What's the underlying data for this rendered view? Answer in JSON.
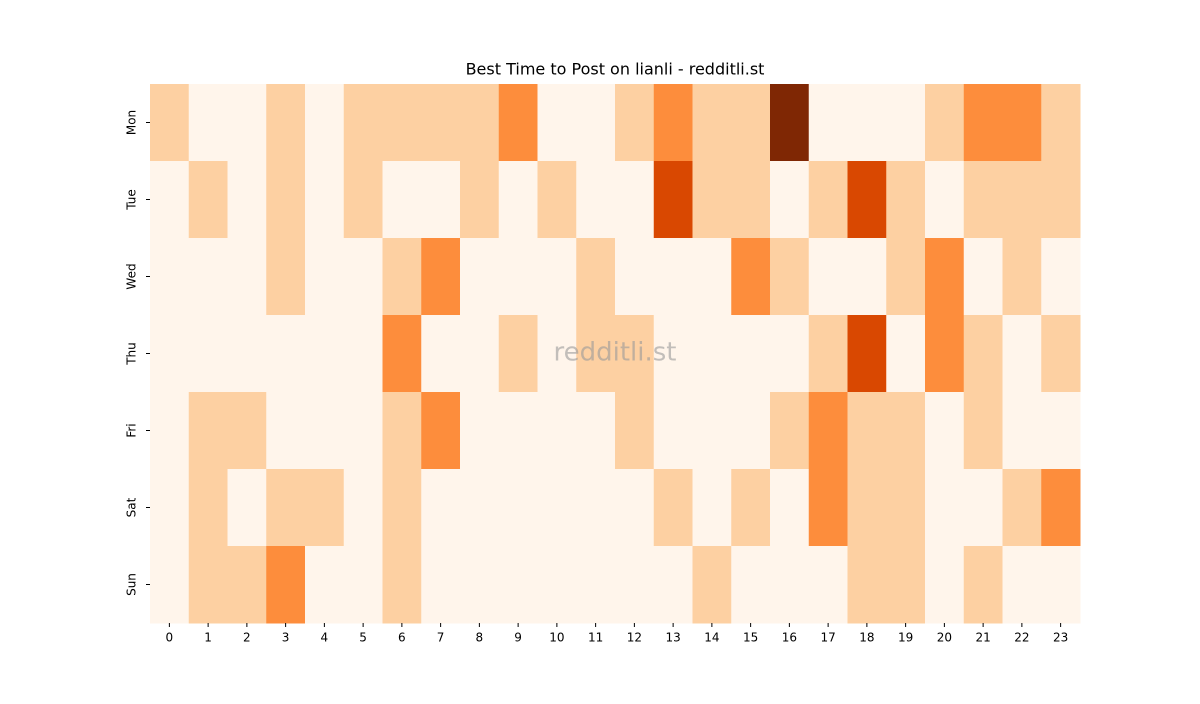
{
  "chart_data": {
    "type": "heatmap",
    "title": "Best Time to Post on lianli - redditli.st",
    "watermark": "redditli.st",
    "x_categories": [
      0,
      1,
      2,
      3,
      4,
      5,
      6,
      7,
      8,
      9,
      10,
      11,
      12,
      13,
      14,
      15,
      16,
      17,
      18,
      19,
      20,
      21,
      22,
      23
    ],
    "y_categories": [
      "Mon",
      "Tue",
      "Wed",
      "Thu",
      "Fri",
      "Sat",
      "Sun"
    ],
    "values": [
      [
        1,
        0,
        0,
        1,
        0,
        1,
        1,
        1,
        1,
        2,
        0,
        0,
        1,
        2,
        1,
        1,
        4,
        0,
        0,
        0,
        1,
        2,
        2,
        1
      ],
      [
        0,
        1,
        0,
        1,
        0,
        1,
        0,
        0,
        1,
        0,
        1,
        0,
        0,
        3,
        1,
        1,
        0,
        1,
        3,
        1,
        0,
        1,
        1,
        1
      ],
      [
        0,
        0,
        0,
        1,
        0,
        0,
        1,
        2,
        0,
        0,
        0,
        1,
        0,
        0,
        0,
        2,
        1,
        0,
        0,
        1,
        2,
        0,
        1,
        0
      ],
      [
        0,
        0,
        0,
        0,
        0,
        0,
        2,
        0,
        0,
        1,
        0,
        1,
        1,
        0,
        0,
        0,
        0,
        1,
        3,
        0,
        2,
        1,
        0,
        1
      ],
      [
        0,
        1,
        1,
        0,
        0,
        0,
        1,
        2,
        0,
        0,
        0,
        0,
        1,
        0,
        0,
        0,
        1,
        2,
        1,
        1,
        0,
        1,
        0,
        0
      ],
      [
        0,
        1,
        0,
        1,
        1,
        0,
        1,
        0,
        0,
        0,
        0,
        0,
        0,
        1,
        0,
        1,
        0,
        2,
        1,
        1,
        0,
        0,
        1,
        2
      ],
      [
        0,
        1,
        1,
        2,
        0,
        0,
        1,
        0,
        0,
        0,
        0,
        0,
        0,
        0,
        1,
        0,
        0,
        0,
        1,
        1,
        0,
        1,
        0,
        0
      ]
    ],
    "zlim": [
      0,
      4
    ],
    "colorscale": [
      "#fff5eb",
      "#fdd0a2",
      "#fd8d3c",
      "#d94801",
      "#7f2704"
    ]
  }
}
